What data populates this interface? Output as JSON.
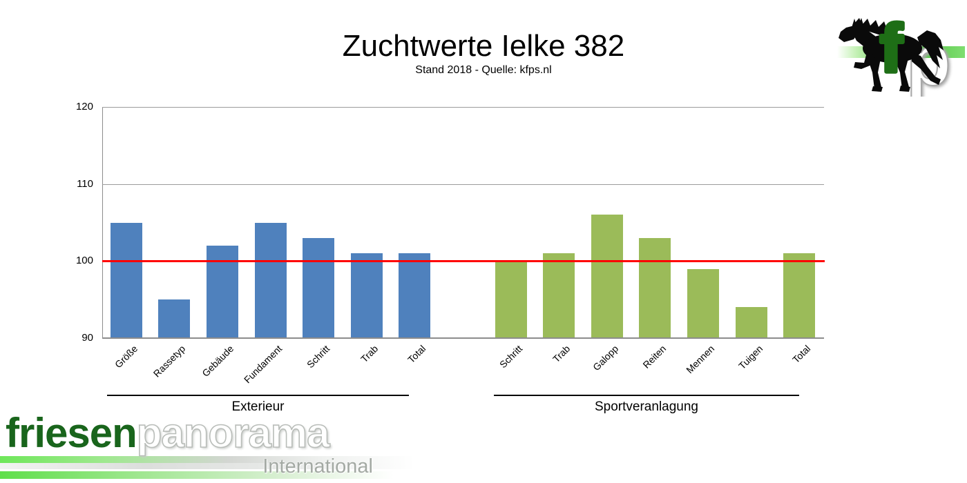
{
  "title": "Zuchtwerte Ielke 382",
  "subtitle": "Stand 2018 - Quelle: kfps.nl",
  "chart_data": {
    "type": "bar",
    "title": "Zuchtwerte Ielke 382",
    "subtitle": "Stand 2018 - Quelle: kfps.nl",
    "ylim": [
      90,
      120
    ],
    "yticks": [
      90,
      100,
      110,
      120
    ],
    "grid": true,
    "legend": false,
    "reference_line": {
      "value": 100,
      "color": "#ff0000"
    },
    "groups": [
      {
        "label": "Exterieur",
        "color": "#4f81bd",
        "categories": [
          "Größe",
          "Rassetyp",
          "Gebäude",
          "Fundament",
          "Schritt",
          "Trab",
          "Total"
        ],
        "values": [
          105,
          95,
          102,
          105,
          103,
          101,
          101
        ]
      },
      {
        "label": "Sportveranlagung",
        "color": "#9bbb59",
        "categories": [
          "Schritt",
          "Trab",
          "Galopp",
          "Reiten",
          "Mennen",
          "Tuigen",
          "Total"
        ],
        "values": [
          100,
          101,
          106,
          103,
          99,
          94,
          101
        ]
      }
    ]
  },
  "logo_fp": {
    "f": "f",
    "p": "p"
  },
  "watermark": {
    "first": "friesen",
    "second": "panorama",
    "sub": "International"
  },
  "colors": {
    "bar_blue": "#4f81bd",
    "bar_green": "#9bbb59",
    "reference_red": "#ff0000",
    "gridline_grey": "#9a9a9a",
    "brand_dark_green": "#1e6e16"
  }
}
